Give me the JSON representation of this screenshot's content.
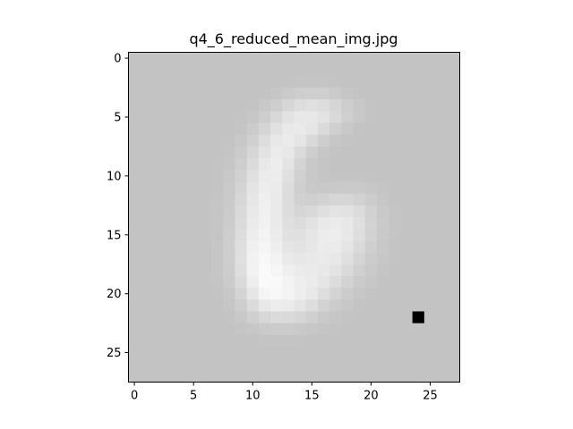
{
  "chart_data": {
    "type": "heatmap",
    "title": "q4_6_reduced_mean_img.jpg",
    "xlabel": "",
    "ylabel": "",
    "colormap": "gray",
    "grid": false,
    "xlim": [
      -0.5,
      27.5
    ],
    "ylim": [
      27.5,
      -0.5
    ],
    "x_ticks": [
      0,
      5,
      10,
      15,
      20,
      25
    ],
    "y_ticks": [
      0,
      5,
      10,
      15,
      20,
      25
    ],
    "x_tick_labels": [
      "0",
      "5",
      "10",
      "15",
      "20",
      "25"
    ],
    "y_tick_labels": [
      "0",
      "5",
      "10",
      "15",
      "20",
      "25"
    ],
    "image_size": [
      28,
      28
    ],
    "values": [
      [
        195,
        195,
        195,
        195,
        195,
        195,
        195,
        195,
        195,
        195,
        195,
        195,
        195,
        195,
        195,
        195,
        195,
        195,
        195,
        195,
        195,
        195,
        195,
        195,
        195,
        195,
        195,
        195
      ],
      [
        195,
        195,
        195,
        195,
        195,
        195,
        195,
        195,
        195,
        195,
        195,
        195,
        195,
        195,
        195,
        195,
        195,
        195,
        195,
        195,
        195,
        195,
        195,
        195,
        195,
        195,
        195,
        195
      ],
      [
        195,
        195,
        195,
        195,
        195,
        195,
        195,
        195,
        195,
        195,
        195,
        195,
        195,
        196,
        197,
        197,
        197,
        196,
        195,
        195,
        195,
        195,
        195,
        195,
        195,
        195,
        195,
        195
      ],
      [
        195,
        195,
        195,
        195,
        195,
        195,
        195,
        195,
        195,
        195,
        195,
        196,
        198,
        202,
        206,
        207,
        206,
        202,
        198,
        196,
        195,
        195,
        195,
        195,
        195,
        195,
        195,
        195
      ],
      [
        195,
        195,
        195,
        195,
        195,
        195,
        195,
        195,
        195,
        195,
        196,
        200,
        206,
        214,
        221,
        224,
        221,
        214,
        206,
        200,
        196,
        195,
        195,
        195,
        195,
        195,
        195,
        195
      ],
      [
        195,
        195,
        195,
        195,
        195,
        195,
        195,
        195,
        195,
        196,
        199,
        206,
        216,
        226,
        232,
        232,
        227,
        217,
        207,
        200,
        196,
        195,
        195,
        195,
        195,
        195,
        195,
        195
      ],
      [
        195,
        195,
        195,
        195,
        195,
        195,
        195,
        195,
        195,
        197,
        203,
        213,
        225,
        233,
        234,
        229,
        218,
        207,
        200,
        196,
        195,
        195,
        195,
        195,
        195,
        195,
        195,
        195
      ],
      [
        195,
        195,
        195,
        195,
        195,
        195,
        195,
        195,
        196,
        200,
        208,
        221,
        232,
        235,
        229,
        217,
        206,
        199,
        196,
        195,
        195,
        195,
        195,
        195,
        195,
        195,
        195,
        195
      ],
      [
        195,
        195,
        195,
        195,
        195,
        195,
        195,
        195,
        197,
        203,
        214,
        227,
        235,
        232,
        219,
        206,
        199,
        196,
        195,
        195,
        195,
        195,
        195,
        195,
        195,
        195,
        195,
        195
      ],
      [
        195,
        195,
        195,
        195,
        195,
        195,
        195,
        196,
        198,
        206,
        219,
        232,
        237,
        228,
        212,
        201,
        197,
        195,
        195,
        195,
        195,
        195,
        195,
        195,
        195,
        195,
        195,
        195
      ],
      [
        195,
        195,
        195,
        195,
        195,
        195,
        195,
        196,
        200,
        209,
        224,
        235,
        236,
        224,
        208,
        200,
        197,
        196,
        196,
        196,
        196,
        195,
        195,
        195,
        195,
        195,
        195,
        195
      ],
      [
        195,
        195,
        195,
        195,
        195,
        195,
        195,
        196,
        201,
        212,
        228,
        237,
        235,
        221,
        207,
        201,
        200,
        201,
        202,
        201,
        199,
        197,
        195,
        195,
        195,
        195,
        195,
        195
      ],
      [
        195,
        195,
        195,
        195,
        195,
        195,
        195,
        197,
        202,
        215,
        231,
        239,
        234,
        220,
        209,
        207,
        210,
        214,
        214,
        210,
        204,
        199,
        196,
        195,
        195,
        195,
        195,
        195
      ],
      [
        195,
        195,
        195,
        195,
        195,
        195,
        195,
        197,
        203,
        217,
        233,
        240,
        234,
        221,
        214,
        217,
        223,
        227,
        226,
        219,
        209,
        201,
        197,
        195,
        195,
        195,
        195,
        195
      ],
      [
        195,
        195,
        195,
        195,
        195,
        195,
        195,
        197,
        204,
        219,
        235,
        241,
        234,
        223,
        220,
        226,
        233,
        235,
        232,
        223,
        211,
        202,
        197,
        195,
        195,
        195,
        195,
        195
      ],
      [
        195,
        195,
        195,
        195,
        195,
        195,
        195,
        197,
        205,
        221,
        237,
        243,
        235,
        225,
        224,
        230,
        236,
        237,
        232,
        222,
        210,
        201,
        197,
        195,
        195,
        195,
        195,
        195
      ],
      [
        195,
        195,
        195,
        195,
        195,
        195,
        195,
        198,
        206,
        223,
        240,
        245,
        238,
        229,
        227,
        231,
        235,
        235,
        229,
        218,
        207,
        200,
        196,
        195,
        195,
        195,
        195,
        195
      ],
      [
        195,
        195,
        195,
        195,
        195,
        195,
        195,
        198,
        206,
        224,
        242,
        248,
        242,
        234,
        231,
        233,
        234,
        232,
        224,
        213,
        204,
        199,
        196,
        195,
        195,
        195,
        195,
        195
      ],
      [
        195,
        195,
        195,
        195,
        195,
        195,
        195,
        198,
        205,
        222,
        242,
        250,
        246,
        239,
        235,
        234,
        232,
        227,
        218,
        208,
        201,
        197,
        195,
        195,
        195,
        195,
        195,
        195
      ],
      [
        195,
        195,
        195,
        195,
        195,
        195,
        195,
        197,
        203,
        218,
        238,
        250,
        249,
        243,
        238,
        235,
        229,
        220,
        211,
        203,
        199,
        196,
        195,
        195,
        195,
        195,
        195,
        195
      ],
      [
        195,
        195,
        195,
        195,
        195,
        195,
        195,
        196,
        200,
        212,
        230,
        245,
        248,
        244,
        238,
        232,
        222,
        212,
        204,
        199,
        196,
        195,
        195,
        195,
        195,
        195,
        195,
        195
      ],
      [
        195,
        195,
        195,
        195,
        195,
        195,
        195,
        195,
        198,
        206,
        219,
        232,
        237,
        235,
        229,
        221,
        211,
        204,
        199,
        196,
        195,
        195,
        195,
        195,
        195,
        195,
        195,
        195
      ],
      [
        195,
        195,
        195,
        195,
        195,
        195,
        195,
        195,
        196,
        200,
        207,
        215,
        219,
        218,
        214,
        208,
        202,
        198,
        196,
        195,
        195,
        195,
        195,
        195,
        0,
        195,
        195,
        195
      ],
      [
        195,
        195,
        195,
        195,
        195,
        195,
        195,
        195,
        195,
        197,
        199,
        202,
        203,
        203,
        201,
        199,
        197,
        196,
        195,
        195,
        195,
        195,
        195,
        195,
        195,
        195,
        195,
        195
      ],
      [
        195,
        195,
        195,
        195,
        195,
        195,
        195,
        195,
        195,
        195,
        195,
        196,
        196,
        196,
        196,
        195,
        195,
        195,
        195,
        195,
        195,
        195,
        195,
        195,
        195,
        195,
        195,
        195
      ],
      [
        195,
        195,
        195,
        195,
        195,
        195,
        195,
        195,
        195,
        195,
        195,
        195,
        195,
        195,
        195,
        195,
        195,
        195,
        195,
        195,
        195,
        195,
        195,
        195,
        195,
        195,
        195,
        195
      ],
      [
        195,
        195,
        195,
        195,
        195,
        195,
        195,
        195,
        195,
        195,
        195,
        195,
        195,
        195,
        195,
        195,
        195,
        195,
        195,
        195,
        195,
        195,
        195,
        195,
        195,
        195,
        195,
        195
      ],
      [
        195,
        195,
        195,
        195,
        195,
        195,
        195,
        195,
        195,
        195,
        195,
        195,
        195,
        195,
        195,
        195,
        195,
        195,
        195,
        195,
        195,
        195,
        195,
        195,
        195,
        195,
        195,
        195
      ]
    ]
  }
}
